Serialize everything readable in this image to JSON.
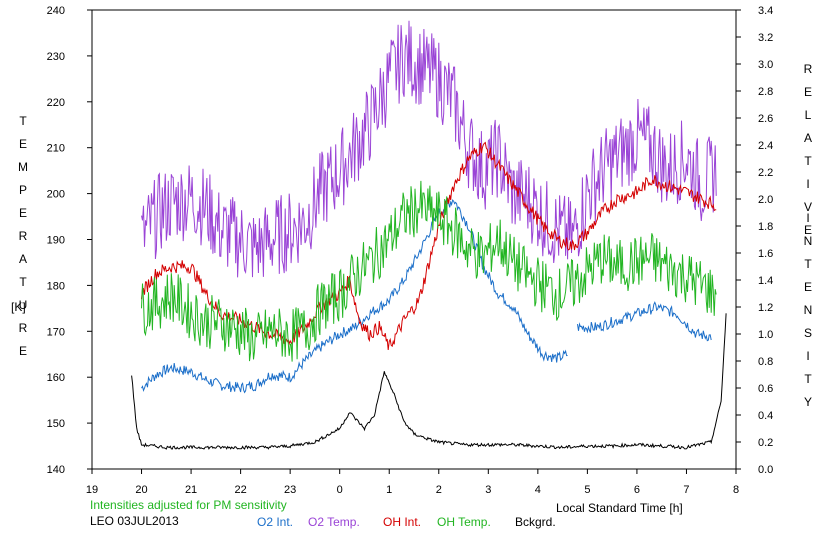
{
  "chart_data": {
    "type": "line",
    "left_axis_letters": [
      "T",
      "E",
      "M",
      "P",
      "E",
      "R",
      "A",
      "T",
      "U",
      "R",
      "E"
    ],
    "left_axis_unit": "[K]",
    "right_axis_letters_1": [
      "R",
      "E",
      "L",
      "A",
      "T",
      "I",
      "V",
      "E"
    ],
    "right_axis_letters_2": [
      "I",
      "N",
      "T",
      "E",
      "N",
      "S",
      "I",
      "T",
      "Y"
    ],
    "xlabel": "Local Standard Time [h]",
    "note": "Intensities adjusted for PM sensitivity",
    "station": "LEO 03JUL2013",
    "x_ticks": [
      "19",
      "20",
      "21",
      "22",
      "23",
      "0",
      "1",
      "2",
      "3",
      "4",
      "5",
      "6",
      "7",
      "8"
    ],
    "xlim": [
      19,
      32
    ],
    "ylim_left": [
      140,
      240
    ],
    "y_ticks_left": [
      "140",
      "150",
      "160",
      "170",
      "180",
      "190",
      "200",
      "210",
      "220",
      "230",
      "240"
    ],
    "ylim_right": [
      0.0,
      3.4
    ],
    "y_ticks_right": [
      "0.0",
      "0.2",
      "0.4",
      "0.6",
      "0.8",
      "1.0",
      "1.2",
      "1.4",
      "1.6",
      "1.8",
      "2.0",
      "2.2",
      "2.4",
      "2.6",
      "2.8",
      "3.0",
      "3.2",
      "3.4"
    ],
    "grid": false,
    "legend_position": "bottom",
    "series": [
      {
        "name": "O2 Int.",
        "axis": "right",
        "color": "#1c6fc9",
        "x": [
          20.0,
          20.3,
          20.6,
          21.0,
          21.3,
          21.6,
          22.0,
          22.3,
          22.6,
          23.0,
          23.3,
          23.6,
          24.0,
          24.3,
          24.6,
          25.0,
          25.3,
          25.6,
          26.0,
          26.3,
          26.6,
          26.9,
          27.2,
          27.5,
          27.8,
          28.1,
          28.4,
          28.6
        ],
        "y": [
          0.6,
          0.7,
          0.75,
          0.72,
          0.66,
          0.62,
          0.6,
          0.62,
          0.7,
          0.68,
          0.8,
          0.9,
          1.0,
          1.05,
          1.15,
          1.25,
          1.4,
          1.6,
          1.9,
          2.0,
          1.8,
          1.5,
          1.3,
          1.2,
          1.0,
          0.85,
          0.82,
          0.85
        ],
        "gap_after": 28.6,
        "x2": [
          28.8,
          29.2,
          29.6,
          30.0,
          30.4,
          30.8,
          31.2,
          31.5
        ],
        "y2": [
          1.05,
          1.05,
          1.1,
          1.15,
          1.2,
          1.15,
          1.0,
          0.98
        ]
      },
      {
        "name": "O2 Temp.",
        "axis": "left",
        "color": "#9a44d6",
        "x": [
          20.0,
          20.3,
          20.6,
          21.0,
          21.3,
          21.6,
          22.0,
          22.3,
          22.6,
          23.0,
          23.3,
          23.6,
          24.0,
          24.3,
          24.6,
          25.0,
          25.3,
          25.6,
          26.0,
          26.3,
          26.6,
          26.9,
          27.2,
          27.5,
          27.8,
          28.1,
          28.4,
          28.7,
          29.0,
          29.3,
          29.6,
          30.0,
          30.3,
          30.6,
          31.0,
          31.3,
          31.6
        ],
        "y": [
          190,
          195,
          198,
          199,
          197,
          192,
          190,
          188,
          190,
          192,
          194,
          200,
          205,
          210,
          215,
          225,
          230,
          228,
          225,
          220,
          210,
          205,
          208,
          200,
          199,
          195,
          192,
          190,
          200,
          205,
          208,
          212,
          210,
          205,
          208,
          202,
          205
        ]
      },
      {
        "name": "OH Int.",
        "axis": "right",
        "color": "#d40000",
        "x": [
          20.0,
          20.3,
          20.6,
          21.0,
          21.3,
          21.6,
          22.0,
          22.3,
          22.6,
          23.0,
          23.3,
          23.6,
          24.0,
          24.2,
          24.4,
          24.6,
          24.8,
          25.0,
          25.3,
          25.6,
          26.0,
          26.3,
          26.6,
          26.9,
          27.2,
          27.5,
          27.8,
          28.1,
          28.4,
          28.7,
          29.0,
          29.3,
          29.6,
          30.0,
          30.3,
          30.6,
          31.0,
          31.3,
          31.6
        ],
        "y": [
          1.3,
          1.45,
          1.5,
          1.5,
          1.3,
          1.15,
          1.1,
          1.05,
          1.0,
          0.95,
          1.05,
          1.2,
          1.3,
          1.4,
          1.1,
          1.0,
          1.05,
          0.9,
          1.1,
          1.25,
          1.8,
          2.1,
          2.3,
          2.4,
          2.25,
          2.1,
          1.95,
          1.8,
          1.7,
          1.65,
          1.75,
          1.9,
          2.0,
          2.05,
          2.15,
          2.1,
          2.05,
          2.0,
          1.95
        ]
      },
      {
        "name": "OH Temp.",
        "axis": "left",
        "color": "#22b522",
        "x": [
          20.0,
          20.3,
          20.6,
          21.0,
          21.3,
          21.6,
          22.0,
          22.3,
          22.6,
          23.0,
          23.3,
          23.6,
          24.0,
          24.3,
          24.6,
          25.0,
          25.3,
          25.6,
          26.0,
          26.3,
          26.6,
          26.9,
          27.2,
          27.5,
          27.8,
          28.1,
          28.4,
          28.7,
          29.0,
          29.3,
          29.6,
          30.0,
          30.3,
          30.6,
          31.0,
          31.3,
          31.6
        ],
        "y": [
          175,
          176,
          178,
          174,
          172,
          172,
          170,
          168,
          170,
          169,
          170,
          175,
          178,
          182,
          185,
          190,
          195,
          197,
          195,
          192,
          188,
          186,
          190,
          185,
          182,
          180,
          178,
          180,
          183,
          186,
          184,
          185,
          186,
          184,
          182,
          180,
          178
        ]
      },
      {
        "name": "Bckgrd.",
        "axis": "right",
        "color": "#000000",
        "x": [
          19.8,
          19.9,
          20.0,
          20.5,
          21.0,
          21.5,
          22.0,
          22.5,
          23.0,
          23.5,
          24.0,
          24.2,
          24.3,
          24.5,
          24.7,
          24.9,
          25.1,
          25.3,
          25.5,
          25.8,
          26.0,
          26.5,
          27.0,
          27.5,
          28.0,
          28.5,
          29.0,
          29.5,
          30.0,
          30.5,
          31.0,
          31.5,
          31.7,
          31.8
        ],
        "y": [
          0.7,
          0.3,
          0.18,
          0.16,
          0.16,
          0.16,
          0.16,
          0.16,
          0.17,
          0.2,
          0.3,
          0.42,
          0.38,
          0.3,
          0.4,
          0.72,
          0.55,
          0.35,
          0.26,
          0.22,
          0.2,
          0.18,
          0.18,
          0.18,
          0.17,
          0.16,
          0.17,
          0.17,
          0.18,
          0.17,
          0.16,
          0.2,
          0.5,
          1.15
        ]
      }
    ]
  }
}
